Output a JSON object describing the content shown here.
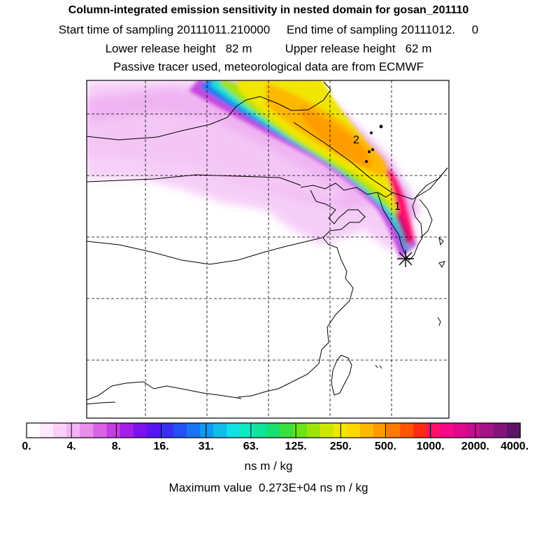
{
  "header": {
    "title": "Column-integrated emission sensitivity in nested domain for gosan_201110",
    "line2": "Start time of sampling 20111011.210000     End time of sampling 20111012.     0",
    "line3": "Lower release height   82 m          Upper release height   62 m",
    "line4": "Passive tracer used, meteorological data are from ECMWF"
  },
  "markers": {
    "label_1": "1",
    "label_2": "2"
  },
  "colorbar": {
    "tick_labels": [
      "0.",
      "4.",
      "8.",
      "16.",
      "31.",
      "63.",
      "125.",
      "250.",
      "500.",
      "1000.",
      "2000.",
      "4000."
    ],
    "colors": [
      "#ffffff",
      "#fde8fd",
      "#f9d0fa",
      "#f2b4f4",
      "#e98ded",
      "#da62e6",
      "#c43de4",
      "#a41ee8",
      "#7d12ec",
      "#5815f0",
      "#3a2ff3",
      "#2450f4",
      "#1874f2",
      "#1298ef",
      "#10bde9",
      "#12e0e2",
      "#10e8c0",
      "#10e49a",
      "#18df72",
      "#3be03f",
      "#6be21a",
      "#9ee40a",
      "#cde605",
      "#f0e600",
      "#ffd700",
      "#ffb800",
      "#ff9a00",
      "#ff7a00",
      "#ff5400",
      "#ff2a15",
      "#ff1068",
      "#f50a88",
      "#de0a8e",
      "#c40f8e",
      "#a51186",
      "#82147a",
      "#5e1466"
    ],
    "units": "ns m / kg"
  },
  "footer": {
    "maximum": "Maximum value  0.273E+04 ns m / kg"
  }
}
